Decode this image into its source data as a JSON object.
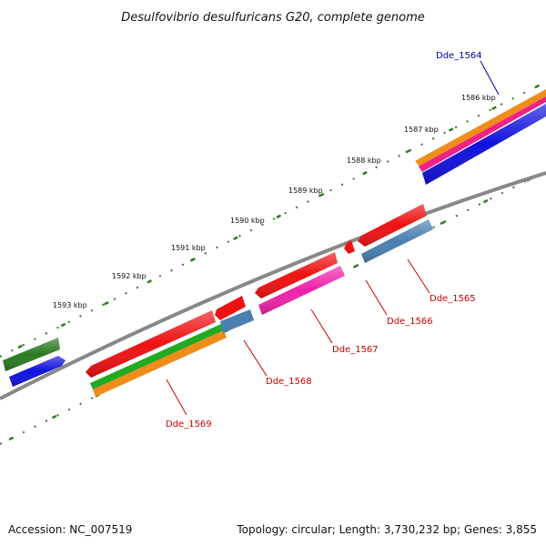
{
  "title": "Desulfovibrio desulfuricans G20, complete genome",
  "footer": {
    "accession": "Accession: NC_007519",
    "topology": "Topology: circular; Length: 3,730,232 bp; Genes: 3,855"
  },
  "scale_labels": [
    "1586 kbp",
    "1587 kbp",
    "1588 kbp",
    "1589 kbp",
    "1590 kbp",
    "1591 kbp",
    "1592 kbp",
    "1593 kbp"
  ],
  "gene_labels": {
    "dde_1564": "Dde_1564",
    "dde_1565": "Dde_1565",
    "dde_1566": "Dde_1566",
    "dde_1567": "Dde_1567",
    "dde_1568": "Dde_1568",
    "dde_1569": "Dde_1569"
  },
  "colors": {
    "backbone": "#888888",
    "tick": "#2e7d1e",
    "red": "#ee1111",
    "orange": "#f08c1a",
    "pink": "#ee2288",
    "magenta": "#ee22aa",
    "blue": "#1111dd",
    "steelblue": "#4a7fb0",
    "green": "#22aa22",
    "darkgreen": "#2a7a22",
    "label_red": "#cc0000",
    "label_blue": "#0000aa"
  }
}
